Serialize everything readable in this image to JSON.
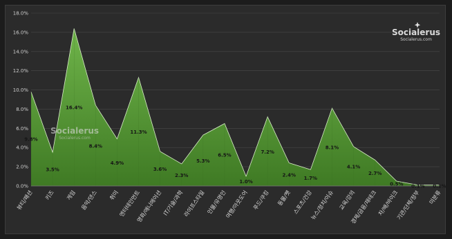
{
  "watermark": {
    "brand": "Socialerus",
    "site": "Socialerus.com"
  },
  "chart_data": {
    "type": "area",
    "categories": [
      "뷰티/패션",
      "키즈",
      "게임",
      "음악/댄스",
      "취미",
      "엔터테인먼트",
      "영화/애니메이션",
      "IT/기술/과학",
      "라이프스타일",
      "인물/유명인",
      "여행/아웃도어",
      "푸드/쿠킹",
      "동물/펫",
      "스포츠/건강",
      "뉴스/정치/이슈",
      "교육/강의",
      "경제/금융/재테크",
      "차/배/바이크",
      "기관/단체/정부",
      "미분류"
    ],
    "values": [
      9.8,
      3.5,
      16.4,
      8.4,
      4.9,
      11.3,
      3.6,
      2.3,
      5.3,
      6.5,
      1.0,
      7.2,
      2.4,
      1.7,
      8.1,
      4.1,
      2.7,
      0.5,
      0.1,
      0.1
    ],
    "data_labels": [
      "9.8%",
      "3.5%",
      "16.4%",
      "8.4%",
      "4.9%",
      "11.3%",
      "3.6%",
      "2.3%",
      "5.3%",
      "6.5%",
      "1.0%",
      "7.2%",
      "2.4%",
      "1.7%",
      "8.1%",
      "4.1%",
      "2.7%",
      "0.5%",
      "0.1%",
      "0.1%"
    ],
    "y_ticks": [
      "0.0%",
      "2.0%",
      "4.0%",
      "6.0%",
      "8.0%",
      "10.0%",
      "12.0%",
      "14.0%",
      "16.0%",
      "18.0%"
    ],
    "ylim": [
      0,
      18
    ],
    "grid": true,
    "colors": {
      "fill_light": "#6fb44a",
      "fill_dark": "#3f7a24",
      "stroke": "#d8ecc8",
      "grid": "#4a4a4a"
    }
  }
}
